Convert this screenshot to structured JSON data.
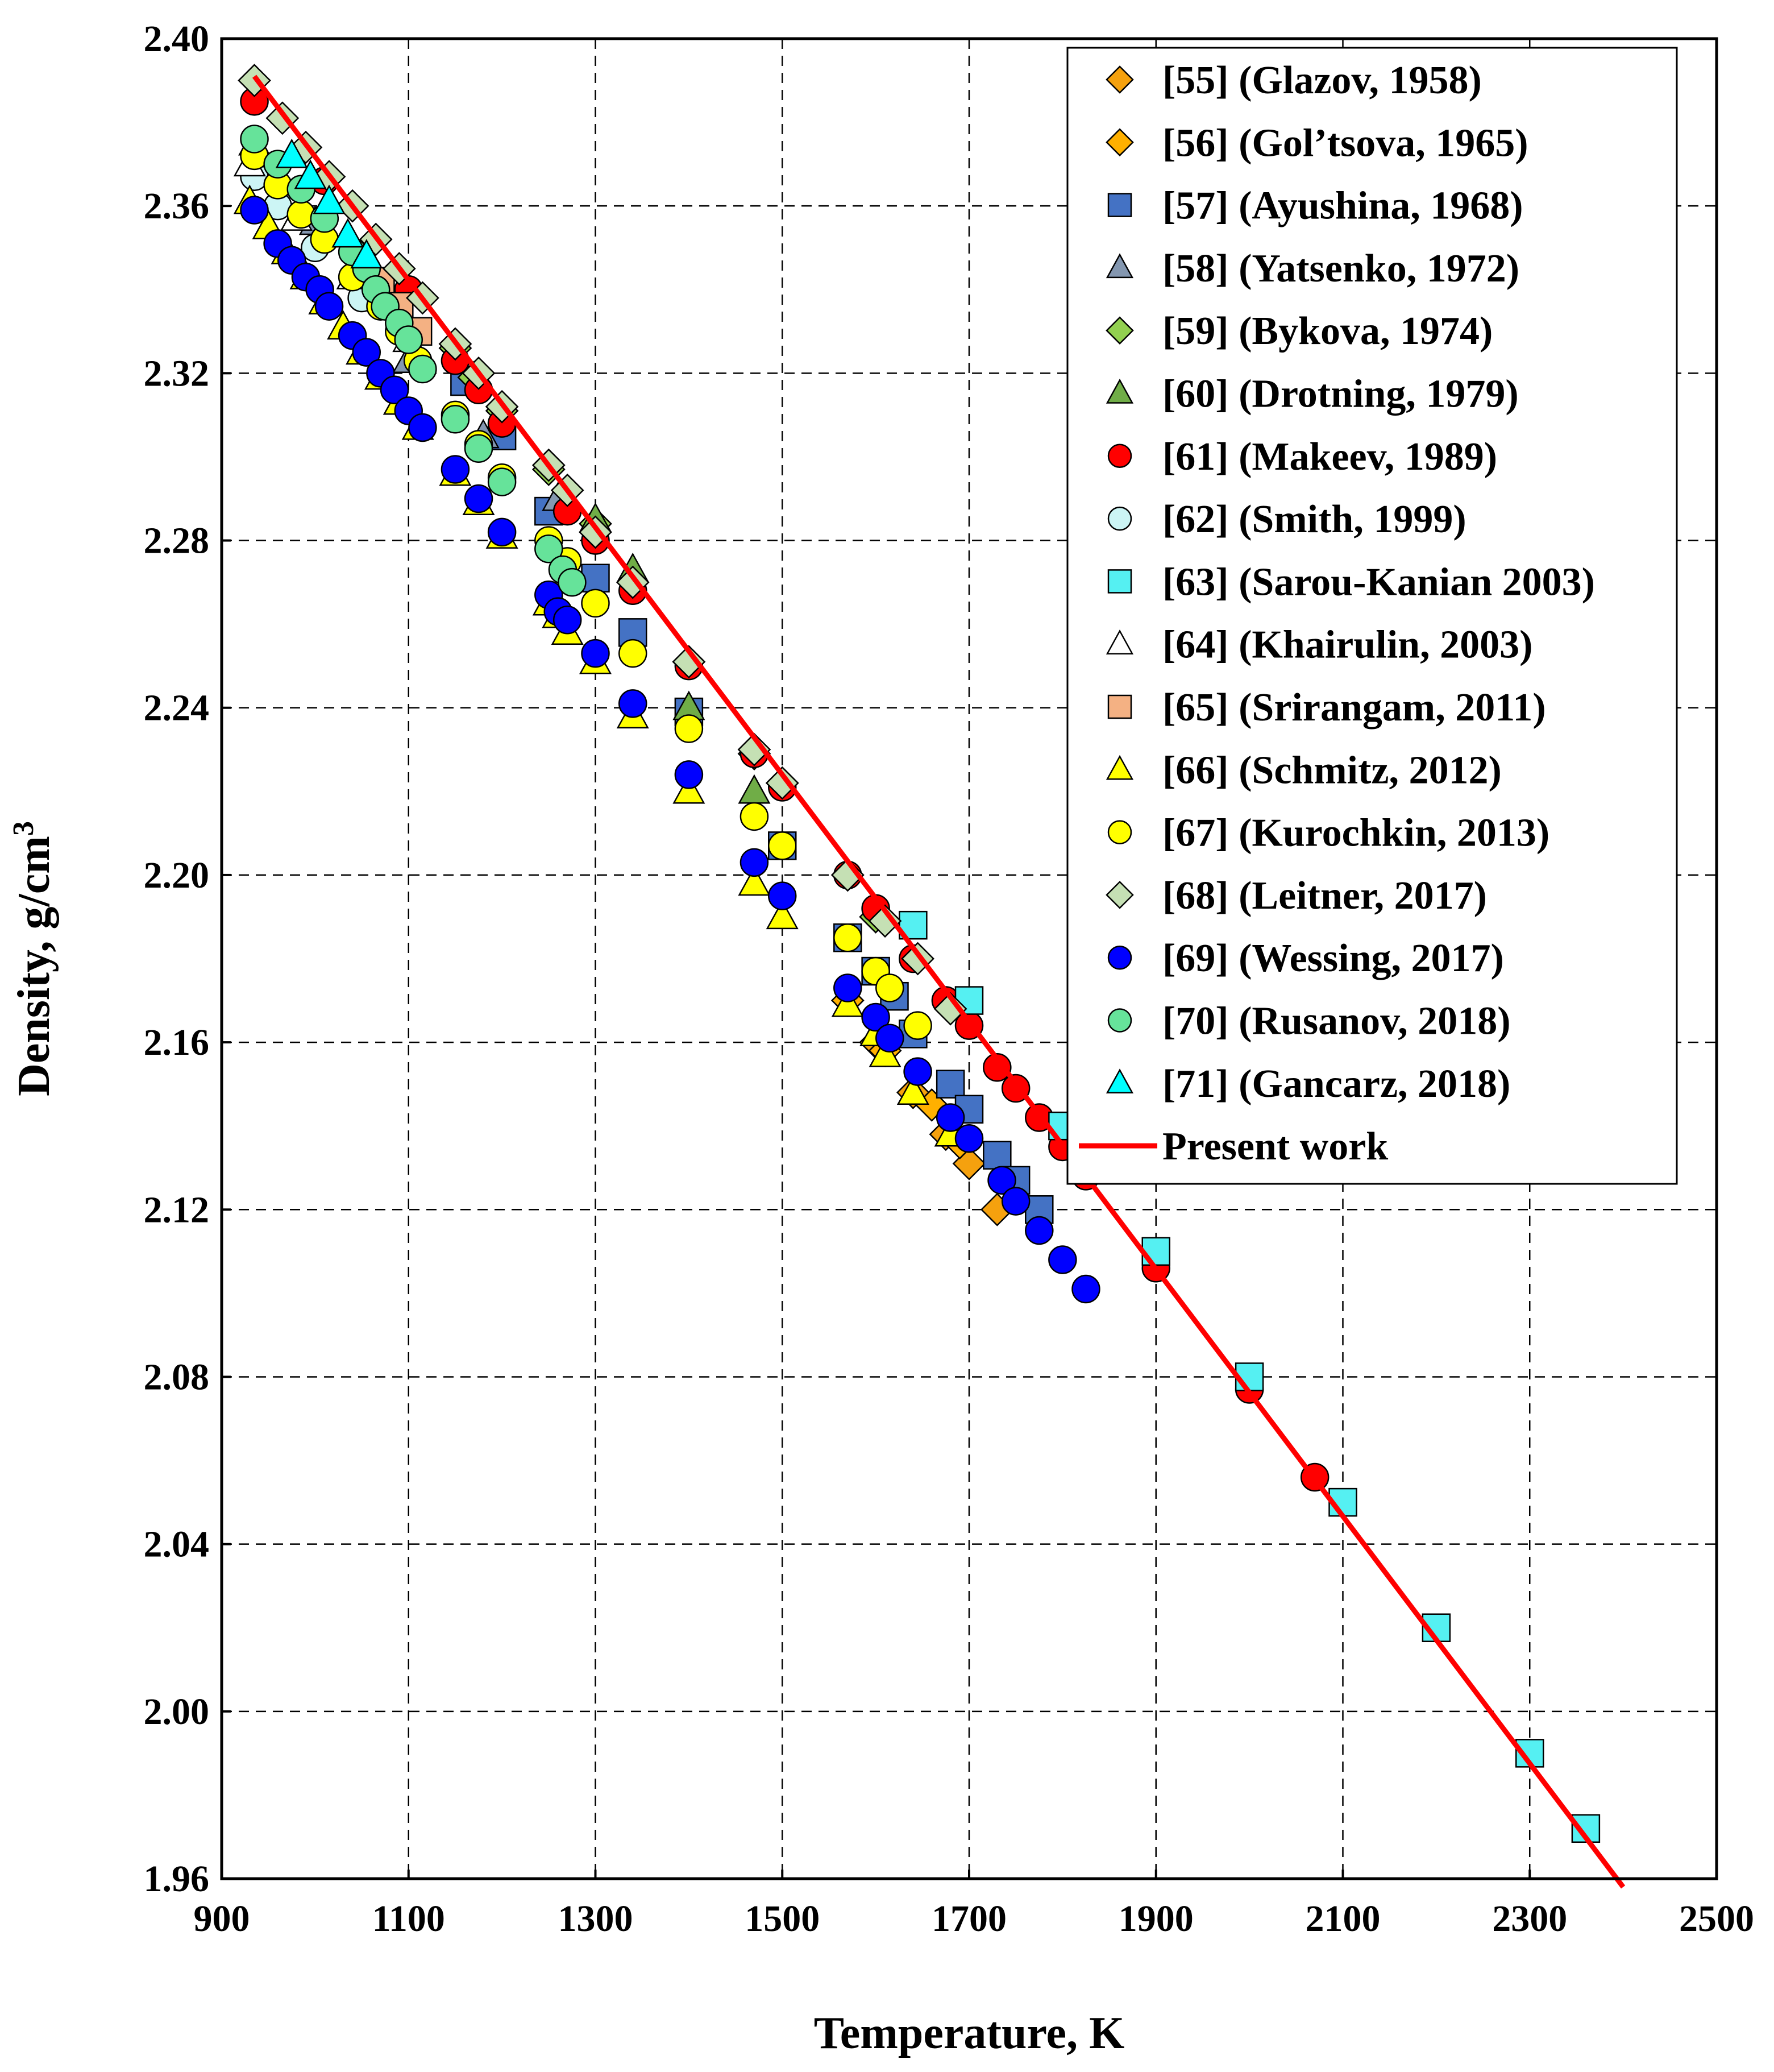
{
  "chart_data": {
    "type": "scatter",
    "title": "",
    "xlabel": "Temperature,  K",
    "ylabel": "Density,  g/cm",
    "ylabel_superscript": "3",
    "xlim": [
      900,
      2500
    ],
    "ylim": [
      1.96,
      2.4
    ],
    "x_ticks": [
      900,
      1100,
      1300,
      1500,
      1700,
      1900,
      2100,
      2300,
      2500
    ],
    "y_ticks": [
      1.96,
      2.0,
      2.04,
      2.08,
      2.12,
      2.16,
      2.2,
      2.24,
      2.28,
      2.32,
      2.36,
      2.4
    ],
    "x_tick_labels": [
      "900",
      "1100",
      "1300",
      "1500",
      "1700",
      "1900",
      "2100",
      "2300",
      "2500"
    ],
    "y_tick_labels": [
      "1.96",
      "2.00",
      "2.04",
      "2.08",
      "2.12",
      "2.16",
      "2.20",
      "2.24",
      "2.28",
      "2.32",
      "2.36",
      "2.40"
    ],
    "grid": true,
    "legend_position": "top-right",
    "series": [
      {
        "name": "[55] (Glazov, 1958)",
        "marker": "diamond",
        "color": "#F5A10E",
        "points": [
          [
            1675,
            2.138
          ],
          [
            1700,
            2.131
          ],
          [
            1730,
            2.12
          ],
          [
            1640,
            2.148
          ],
          [
            1600,
            2.16
          ]
        ]
      },
      {
        "name": "[56] (Gol’tsova, 1965)",
        "marker": "diamond",
        "color": "#FFB000",
        "points": [
          [
            1570,
            2.17
          ],
          [
            1610,
            2.158
          ],
          [
            1660,
            2.145
          ],
          [
            1690,
            2.136
          ]
        ]
      },
      {
        "name": "[57] (Ayushina, 1968)",
        "marker": "square",
        "color": "#4472C4",
        "points": [
          [
            1250,
            2.287
          ],
          [
            1300,
            2.271
          ],
          [
            1340,
            2.258
          ],
          [
            1400,
            2.239
          ],
          [
            1500,
            2.207
          ],
          [
            1570,
            2.185
          ],
          [
            1600,
            2.177
          ],
          [
            1620,
            2.171
          ],
          [
            1640,
            2.162
          ],
          [
            1680,
            2.15
          ],
          [
            1700,
            2.144
          ],
          [
            1730,
            2.133
          ],
          [
            1750,
            2.127
          ],
          [
            1775,
            2.12
          ],
          [
            1160,
            2.318
          ],
          [
            1200,
            2.305
          ]
        ]
      },
      {
        "name": "[58] (Yatsenko, 1972)",
        "marker": "triangle",
        "color": "#8497B0",
        "points": [
          [
            935,
            2.375
          ],
          [
            1000,
            2.356
          ],
          [
            1100,
            2.323
          ],
          [
            1180,
            2.305
          ],
          [
            1260,
            2.29
          ]
        ]
      },
      {
        "name": "[59] (Bykova, 1974)",
        "marker": "diamond",
        "color": "#92D050",
        "points": [
          [
            1150,
            2.326
          ],
          [
            1170,
            2.319
          ],
          [
            1200,
            2.311
          ],
          [
            1250,
            2.297
          ],
          [
            1300,
            2.284
          ],
          [
            1400,
            2.251
          ],
          [
            1470,
            2.229
          ],
          [
            1500,
            2.222
          ],
          [
            1570,
            2.2
          ],
          [
            1600,
            2.19
          ]
        ]
      },
      {
        "name": "[60] (Drotning, 1979)",
        "marker": "triangle",
        "color": "#70AD47",
        "points": [
          [
            1340,
            2.273
          ],
          [
            1400,
            2.24
          ],
          [
            1470,
            2.22
          ],
          [
            1300,
            2.285
          ]
        ]
      },
      {
        "name": "[61] (Makeev, 1989)",
        "marker": "circle",
        "color": "#FF0000",
        "points": [
          [
            935,
            2.385
          ],
          [
            1010,
            2.366
          ],
          [
            1100,
            2.34
          ],
          [
            1150,
            2.323
          ],
          [
            1175,
            2.316
          ],
          [
            1200,
            2.308
          ],
          [
            1270,
            2.287
          ],
          [
            1300,
            2.28
          ],
          [
            1340,
            2.268
          ],
          [
            1400,
            2.25
          ],
          [
            1470,
            2.229
          ],
          [
            1500,
            2.221
          ],
          [
            1570,
            2.2
          ],
          [
            1600,
            2.192
          ],
          [
            1640,
            2.18
          ],
          [
            1675,
            2.17
          ],
          [
            1700,
            2.164
          ],
          [
            1730,
            2.154
          ],
          [
            1750,
            2.149
          ],
          [
            1775,
            2.142
          ],
          [
            1800,
            2.135
          ],
          [
            1825,
            2.128
          ],
          [
            1900,
            2.106
          ],
          [
            2000,
            2.077
          ],
          [
            2070,
            2.056
          ]
        ]
      },
      {
        "name": "[62] (Smith, 1999)",
        "marker": "circle",
        "color": "#CCF5F5",
        "points": [
          [
            935,
            2.367
          ],
          [
            960,
            2.36
          ],
          [
            1000,
            2.35
          ],
          [
            1050,
            2.338
          ]
        ]
      },
      {
        "name": "[63] (Sarou-Kanian 2003)",
        "marker": "square",
        "color": "#55F0F2",
        "points": [
          [
            1640,
            2.188
          ],
          [
            1700,
            2.17
          ],
          [
            1800,
            2.14
          ],
          [
            1900,
            2.11
          ],
          [
            2000,
            2.08
          ],
          [
            2100,
            2.05
          ],
          [
            2200,
            2.02
          ],
          [
            2300,
            1.99
          ],
          [
            2360,
            1.972
          ]
        ]
      },
      {
        "name": "[64] (Khairulin, 2003)",
        "marker": "triangle",
        "color": "#FFFFFF",
        "points": [
          [
            930,
            2.37
          ],
          [
            980,
            2.357
          ],
          [
            1040,
            2.343
          ],
          [
            1100,
            2.328
          ]
        ]
      },
      {
        "name": "[65] (Srirangam, 2011)",
        "marker": "square",
        "color": "#F4B183",
        "points": [
          [
            1070,
            2.342
          ],
          [
            1090,
            2.336
          ],
          [
            1110,
            2.33
          ]
        ]
      },
      {
        "name": "[66] (Schmitz, 2012)",
        "marker": "triangle",
        "color": "#FFFF00",
        "points": [
          [
            930,
            2.361
          ],
          [
            950,
            2.355
          ],
          [
            970,
            2.349
          ],
          [
            990,
            2.343
          ],
          [
            1010,
            2.337
          ],
          [
            1030,
            2.331
          ],
          [
            1050,
            2.325
          ],
          [
            1070,
            2.319
          ],
          [
            1090,
            2.313
          ],
          [
            1110,
            2.307
          ],
          [
            1150,
            2.296
          ],
          [
            1175,
            2.289
          ],
          [
            1200,
            2.281
          ],
          [
            1250,
            2.265
          ],
          [
            1260,
            2.262
          ],
          [
            1270,
            2.258
          ],
          [
            1300,
            2.251
          ],
          [
            1340,
            2.238
          ],
          [
            1400,
            2.22
          ],
          [
            1470,
            2.198
          ],
          [
            1500,
            2.19
          ],
          [
            1570,
            2.169
          ],
          [
            1600,
            2.162
          ],
          [
            1610,
            2.157
          ],
          [
            1640,
            2.148
          ],
          [
            1680,
            2.138
          ]
        ]
      },
      {
        "name": "[67] (Kurochkin, 2013)",
        "marker": "circle",
        "color": "#FFFF00",
        "points": [
          [
            935,
            2.372
          ],
          [
            960,
            2.365
          ],
          [
            985,
            2.358
          ],
          [
            1010,
            2.352
          ],
          [
            1040,
            2.343
          ],
          [
            1070,
            2.336
          ],
          [
            1090,
            2.33
          ],
          [
            1110,
            2.323
          ],
          [
            1150,
            2.31
          ],
          [
            1175,
            2.303
          ],
          [
            1200,
            2.295
          ],
          [
            1250,
            2.28
          ],
          [
            1270,
            2.275
          ],
          [
            1300,
            2.265
          ],
          [
            1340,
            2.253
          ],
          [
            1400,
            2.235
          ],
          [
            1470,
            2.214
          ],
          [
            1500,
            2.207
          ],
          [
            1570,
            2.185
          ],
          [
            1600,
            2.177
          ],
          [
            1615,
            2.173
          ],
          [
            1645,
            2.164
          ]
        ]
      },
      {
        "name": "[68] (Leitner, 2017)",
        "marker": "diamond",
        "color": "#C5E0B4",
        "points": [
          [
            935,
            2.39
          ],
          [
            965,
            2.381
          ],
          [
            990,
            2.374
          ],
          [
            1015,
            2.367
          ],
          [
            1040,
            2.36
          ],
          [
            1065,
            2.352
          ],
          [
            1090,
            2.345
          ],
          [
            1115,
            2.338
          ],
          [
            1150,
            2.327
          ],
          [
            1175,
            2.32
          ],
          [
            1200,
            2.312
          ],
          [
            1250,
            2.298
          ],
          [
            1270,
            2.292
          ],
          [
            1300,
            2.282
          ],
          [
            1340,
            2.27
          ],
          [
            1400,
            2.251
          ],
          [
            1470,
            2.23
          ],
          [
            1500,
            2.222
          ],
          [
            1570,
            2.2
          ],
          [
            1610,
            2.189
          ],
          [
            1645,
            2.18
          ],
          [
            1680,
            2.168
          ]
        ]
      },
      {
        "name": "[69] (Wessing, 2017)",
        "marker": "circle",
        "color": "#0000FF",
        "points": [
          [
            935,
            2.359
          ],
          [
            960,
            2.351
          ],
          [
            975,
            2.347
          ],
          [
            990,
            2.343
          ],
          [
            1005,
            2.34
          ],
          [
            1015,
            2.336
          ],
          [
            1040,
            2.329
          ],
          [
            1055,
            2.325
          ],
          [
            1070,
            2.32
          ],
          [
            1085,
            2.316
          ],
          [
            1100,
            2.311
          ],
          [
            1115,
            2.307
          ],
          [
            1150,
            2.297
          ],
          [
            1175,
            2.29
          ],
          [
            1200,
            2.282
          ],
          [
            1250,
            2.267
          ],
          [
            1260,
            2.263
          ],
          [
            1270,
            2.261
          ],
          [
            1300,
            2.253
          ],
          [
            1340,
            2.241
          ],
          [
            1400,
            2.224
          ],
          [
            1470,
            2.203
          ],
          [
            1500,
            2.195
          ],
          [
            1570,
            2.173
          ],
          [
            1600,
            2.166
          ],
          [
            1615,
            2.161
          ],
          [
            1645,
            2.153
          ],
          [
            1680,
            2.142
          ],
          [
            1700,
            2.137
          ],
          [
            1735,
            2.127
          ],
          [
            1750,
            2.122
          ],
          [
            1775,
            2.115
          ],
          [
            1800,
            2.108
          ],
          [
            1825,
            2.101
          ]
        ]
      },
      {
        "name": "[70] (Rusanov, 2018)",
        "marker": "circle",
        "color": "#66E39A",
        "points": [
          [
            935,
            2.376
          ],
          [
            960,
            2.37
          ],
          [
            985,
            2.364
          ],
          [
            1010,
            2.357
          ],
          [
            1040,
            2.349
          ],
          [
            1055,
            2.345
          ],
          [
            1065,
            2.34
          ],
          [
            1075,
            2.336
          ],
          [
            1090,
            2.332
          ],
          [
            1100,
            2.328
          ],
          [
            1115,
            2.321
          ],
          [
            1150,
            2.309
          ],
          [
            1175,
            2.302
          ],
          [
            1200,
            2.294
          ],
          [
            1250,
            2.278
          ],
          [
            1265,
            2.273
          ],
          [
            1275,
            2.27
          ]
        ]
      },
      {
        "name": "[71] (Gancarz, 2018)",
        "marker": "triangle",
        "color": "#00FFFF",
        "points": [
          [
            975,
            2.372
          ],
          [
            995,
            2.367
          ],
          [
            1015,
            2.361
          ],
          [
            1035,
            2.353
          ],
          [
            1055,
            2.348
          ]
        ]
      },
      {
        "name": "Present work",
        "marker": "line",
        "color": "#FF0000",
        "points": [
          [
            935,
            2.391
          ],
          [
            2400,
            1.958
          ]
        ]
      }
    ]
  }
}
